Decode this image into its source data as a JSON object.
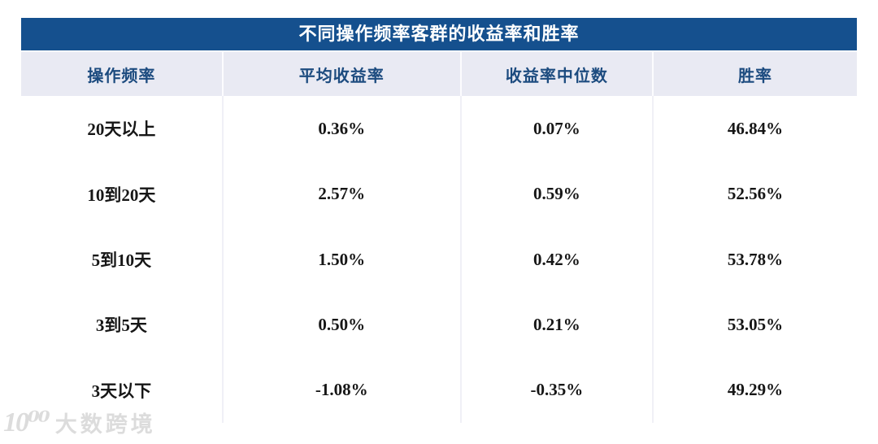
{
  "title": "不同操作频率客群的收益率和胜率",
  "watermark": {
    "logo_icon": "10100-logo-icon",
    "logo_text": "10⁰⁰",
    "text": "大数跨境"
  },
  "colors": {
    "title_bar_bg": "#15508e",
    "title_text": "#ffffff",
    "header_bg": "#e9eaf3",
    "header_text": "#1c4b7f",
    "body_bg": "#ffffff",
    "body_text": "#161616",
    "column_divider": "#f0f0f6",
    "watermark_text": "#dcdcdc"
  },
  "chart_data": {
    "type": "table",
    "title": "不同操作频率客群的收益率和胜率",
    "columns": [
      "操作频率",
      "平均收益率",
      "收益率中位数",
      "胜率"
    ],
    "rows": [
      [
        "20天以上",
        "0.36%",
        "0.07%",
        "46.84%"
      ],
      [
        "10到20天",
        "2.57%",
        "0.59%",
        "52.56%"
      ],
      [
        "5到10天",
        "1.50%",
        "0.42%",
        "53.78%"
      ],
      [
        "3到5天",
        "0.50%",
        "0.21%",
        "53.05%"
      ],
      [
        "3天以下",
        "-1.08%",
        "-0.35%",
        "49.29%"
      ]
    ],
    "layout": {
      "header_style": "dark-blue title bar above lavender header row",
      "gridlines": "vertical column dividers only, no horizontal row lines",
      "alignment": "all cells centered"
    }
  }
}
